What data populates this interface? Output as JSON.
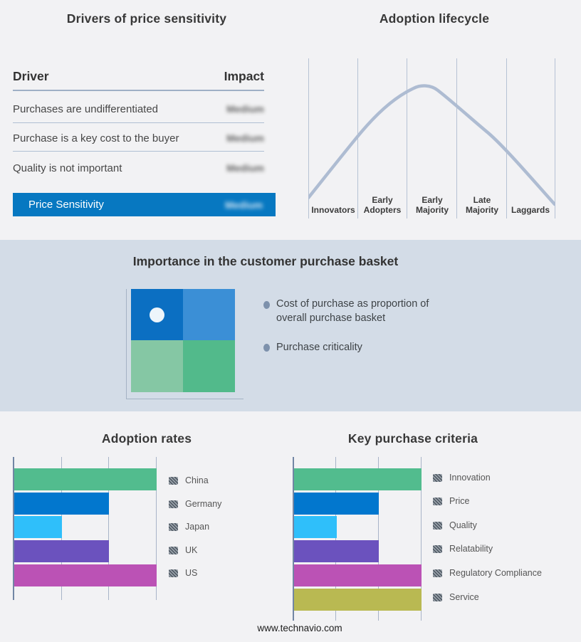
{
  "page": {
    "background": "#f2f2f4",
    "band_background": "#d3dce7",
    "footer_text": "www.technavio.com"
  },
  "chart_data": [
    {
      "id": "adoption_lifecycle",
      "type": "line",
      "title": "Adoption lifecycle",
      "categories": [
        "Innovators",
        "Early Adopters",
        "Early Majority",
        "Late Majority",
        "Laggards"
      ],
      "tick_lines": [
        [
          "Innovators"
        ],
        [
          "Early",
          "Adopters"
        ],
        [
          "Early",
          "Majority"
        ],
        [
          "Late",
          "Majority"
        ],
        [
          "Laggards"
        ]
      ],
      "x": [
        0,
        1,
        2,
        2.4,
        3,
        4,
        5
      ],
      "values": [
        0.35,
        1.35,
        2.55,
        2.72,
        2.4,
        1.35,
        0.25
      ],
      "ylim": [
        0,
        3
      ],
      "curve_color": "#aebcd2",
      "grid": true,
      "description": "Bell-shaped adoption curve peaking within Early Majority"
    },
    {
      "id": "adoption_rates",
      "type": "bar",
      "title": "Adoption rates",
      "orientation": "horizontal",
      "categories": [
        "China",
        "Germany",
        "Japan",
        "UK",
        "US"
      ],
      "values": [
        3,
        2,
        1,
        2,
        3
      ],
      "xlim": [
        0,
        3
      ],
      "grid": true,
      "legend_position": "right",
      "colors": [
        "#52bc8e",
        "#0277ce",
        "#2fbffa",
        "#6b52be",
        "#bb52b5"
      ]
    },
    {
      "id": "key_purchase_criteria",
      "type": "bar",
      "title": "Key purchase criteria",
      "orientation": "horizontal",
      "categories": [
        "Innovation",
        "Price",
        "Quality",
        "Relatability",
        "Regulatory Compliance",
        "Service"
      ],
      "values": [
        3,
        2,
        1,
        2,
        3,
        3
      ],
      "xlim": [
        0,
        3
      ],
      "grid": true,
      "legend_position": "right",
      "colors": [
        "#52bc8e",
        "#0277ce",
        "#2fbffa",
        "#6b52be",
        "#bb52b5",
        "#b9b952"
      ]
    },
    {
      "id": "drivers_of_price_sensitivity",
      "type": "table",
      "title": "Drivers of price sensitivity",
      "columns": [
        "Driver",
        "Impact"
      ],
      "rows": [
        {
          "driver": "Purchases are undifferentiated",
          "impact": "Medium"
        },
        {
          "driver": "Purchase is a key cost to the buyer",
          "impact": "Medium"
        },
        {
          "driver": "Quality is not important",
          "impact": "Medium"
        }
      ],
      "highlight": {
        "label": "Price Sensitivity",
        "impact": "Medium",
        "background": "#0778c1"
      },
      "note": "impact values appear blurred in source image"
    }
  ],
  "basket": {
    "title": "Importance in the customer purchase basket",
    "bullets": [
      {
        "line1": "Cost of purchase as proportion of",
        "line2": "overall purchase basket"
      },
      {
        "line1": "Purchase criticality",
        "line2": ""
      }
    ],
    "bullet_color": "#7d91ac",
    "quadrant": {
      "top_left": "#0b6fc2",
      "top_right": "#3b8fd6",
      "bottom_left": "#85c7a4",
      "bottom_right": "#52ba8b",
      "dot": "#edf5fb"
    }
  }
}
